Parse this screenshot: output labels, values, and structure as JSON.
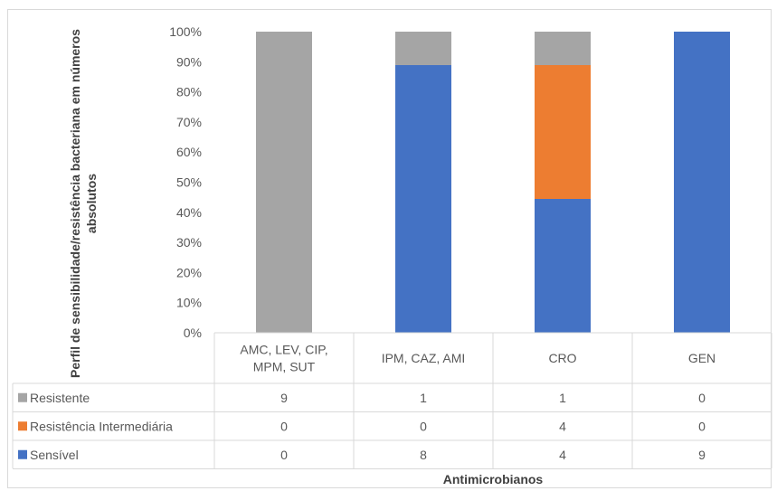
{
  "chart_data": {
    "type": "bar",
    "stacked": true,
    "normalized": true,
    "ylabel": "Perfil de sensibilidade/resistência bacteriana em números absolutos",
    "xlabel": "Antimicrobianos",
    "categories": [
      [
        "AMC, LEV, CIP,",
        "MPM, SUT"
      ],
      [
        "IPM, CAZ, AMI"
      ],
      [
        "CRO"
      ],
      [
        "GEN"
      ]
    ],
    "y_ticks": [
      "0%",
      "10%",
      "20%",
      "30%",
      "40%",
      "50%",
      "60%",
      "70%",
      "80%",
      "90%",
      "100%"
    ],
    "ylim": [
      0,
      1
    ],
    "series": [
      {
        "name": "Sensível",
        "values": [
          0,
          8,
          4,
          9
        ],
        "labels": [
          "0",
          "8",
          "4",
          "9"
        ],
        "color": "#4472C4"
      },
      {
        "name": "Resistência Intermediária",
        "values": [
          0,
          0,
          4,
          0
        ],
        "labels": [
          "0",
          "0",
          "4",
          "0"
        ],
        "color": "#ED7D31"
      },
      {
        "name": "Resistente",
        "values": [
          9,
          1,
          1,
          0
        ],
        "labels": [
          "9",
          "1",
          "1",
          "0"
        ],
        "color": "#A5A5A5"
      }
    ],
    "table_order": [
      2,
      1,
      0
    ],
    "data_table": true
  }
}
